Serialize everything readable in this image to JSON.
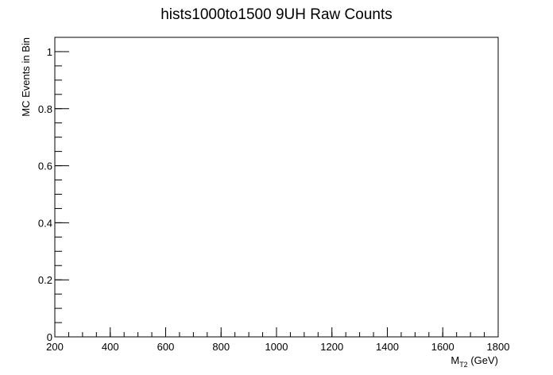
{
  "chart_data": {
    "type": "bar",
    "title": "hists1000to1500 9UH Raw Counts",
    "xlabel": {
      "main": "M",
      "sub": "T2",
      "unit": " (GeV)"
    },
    "ylabel": "MC Events in Bin",
    "xlim": [
      200,
      1800
    ],
    "ylim": [
      0,
      1.05
    ],
    "xticks": [
      200,
      400,
      600,
      800,
      1000,
      1200,
      1400,
      1600,
      1800
    ],
    "xtick_labels": [
      "200",
      "400",
      "600",
      "800",
      "1000",
      "1200",
      "1400",
      "1600",
      "1800"
    ],
    "yticks": [
      0,
      0.2,
      0.4,
      0.6,
      0.8,
      1
    ],
    "ytick_labels": [
      "0",
      "0.2",
      "0.4",
      "0.6",
      "0.8",
      "1"
    ],
    "x_minor_step": 50,
    "y_minor_step": 0.05,
    "grid": false,
    "legend": "none",
    "series": []
  }
}
